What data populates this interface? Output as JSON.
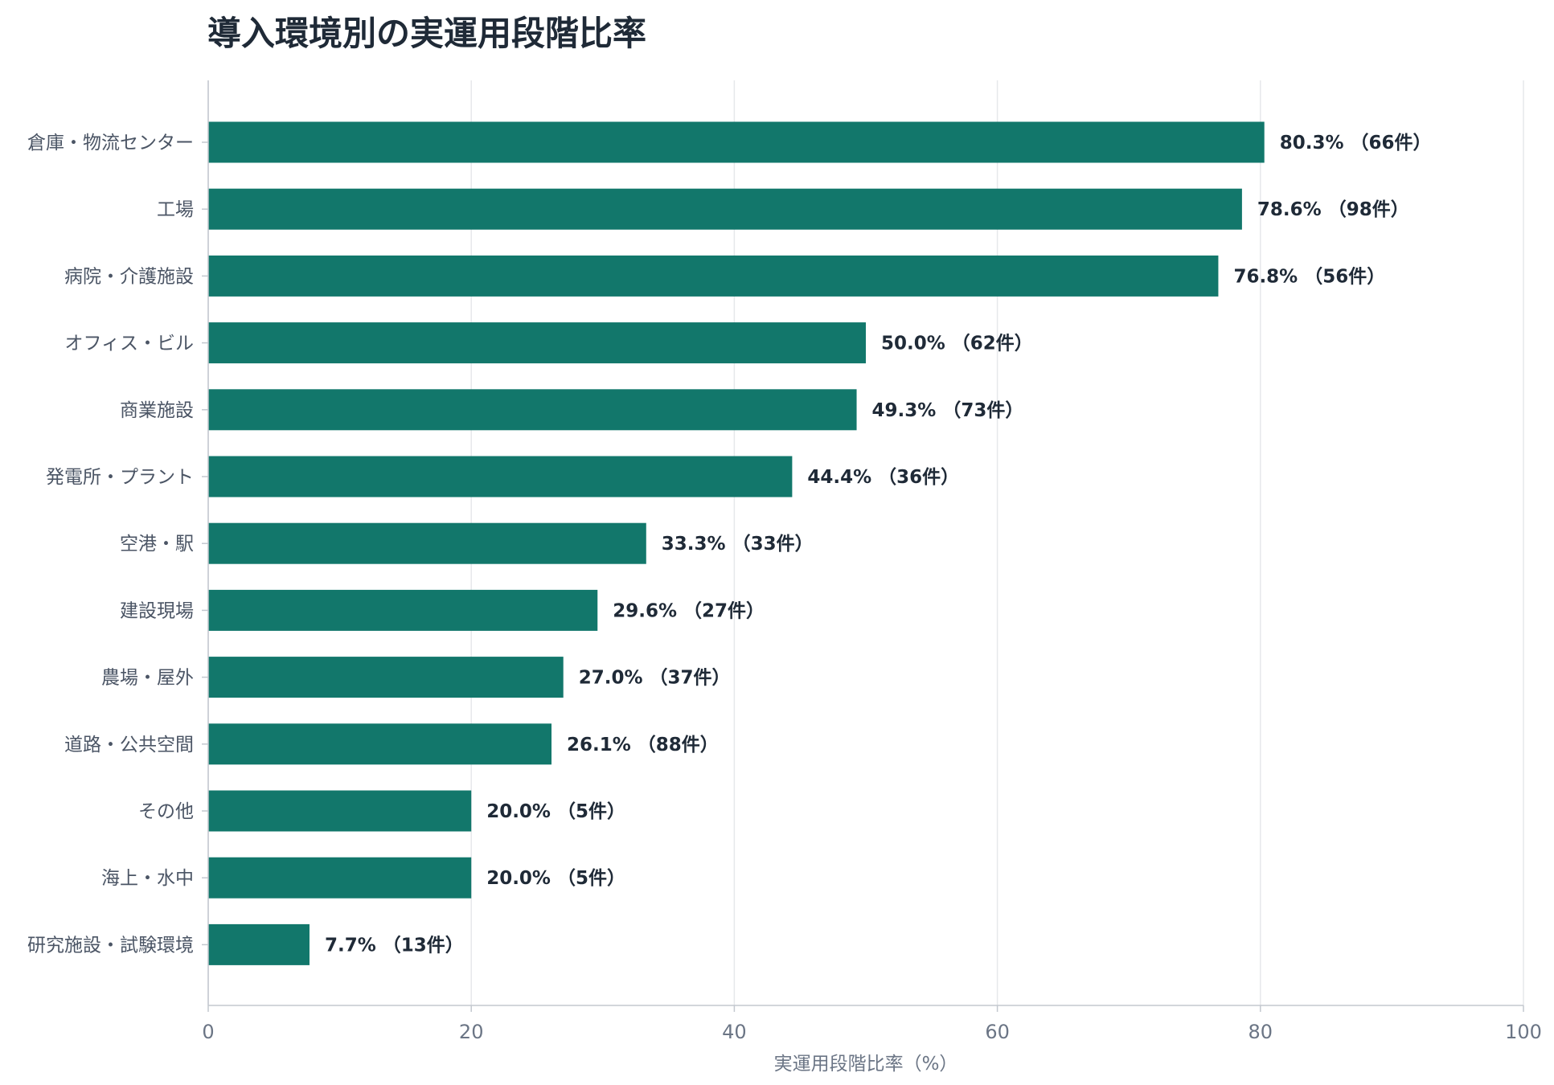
{
  "chart_data": {
    "type": "bar",
    "orientation": "horizontal",
    "title": "導入環境別の実運用段階比率",
    "xlabel": "実運用段階比率（%）",
    "ylabel": "",
    "xlim": [
      0,
      100
    ],
    "xticks": [
      "0",
      "20",
      "40",
      "60",
      "80",
      "100"
    ],
    "grid": "vertical",
    "bar_color": "#12776b",
    "categories": [
      "倉庫・物流センター",
      "工場",
      "病院・介護施設",
      "オフィス・ビル",
      "商業施設",
      "発電所・プラント",
      "空港・駅",
      "建設現場",
      "農場・屋外",
      "道路・公共空間",
      "その他",
      "海上・水中",
      "研究施設・試験環境"
    ],
    "values": [
      80.3,
      78.6,
      76.8,
      50.0,
      49.3,
      44.4,
      33.3,
      29.6,
      27.0,
      26.1,
      20.0,
      20.0,
      7.7
    ],
    "labels": [
      "80.3% （66件）",
      "78.6% （98件）",
      "76.8% （56件）",
      "50.0% （62件）",
      "49.3% （73件）",
      "44.4% （36件）",
      "33.3% （33件）",
      "29.6% （27件）",
      "27.0% （37件）",
      "26.1% （88件）",
      "20.0% （5件）",
      "20.0% （5件）",
      "7.7% （13件）"
    ]
  }
}
